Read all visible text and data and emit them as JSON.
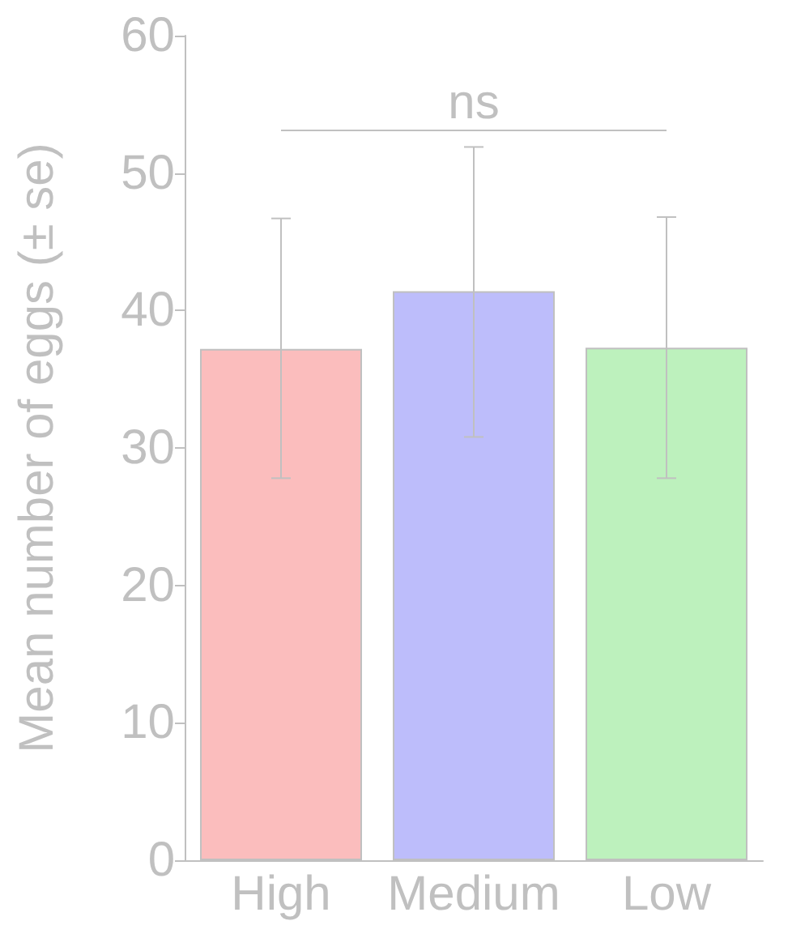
{
  "chart_data": {
    "type": "bar",
    "ylabel": "Mean number of eggs (± se)",
    "categories": [
      "High",
      "Medium",
      "Low"
    ],
    "values": [
      37.2,
      41.4,
      37.3
    ],
    "colors": [
      "#fbbdbd",
      "#bdbdfb",
      "#bdf1bd"
    ],
    "errors": [
      [
        27.8,
        46.7
      ],
      [
        30.8,
        51.9
      ],
      [
        27.8,
        46.8
      ]
    ],
    "ylim": [
      0,
      60
    ],
    "yticks": [
      0,
      10,
      20,
      30,
      40,
      50,
      60
    ],
    "grid": false,
    "ref_lines": [
      {
        "axis": "y",
        "value": 53.1,
        "label": "ns"
      }
    ]
  }
}
